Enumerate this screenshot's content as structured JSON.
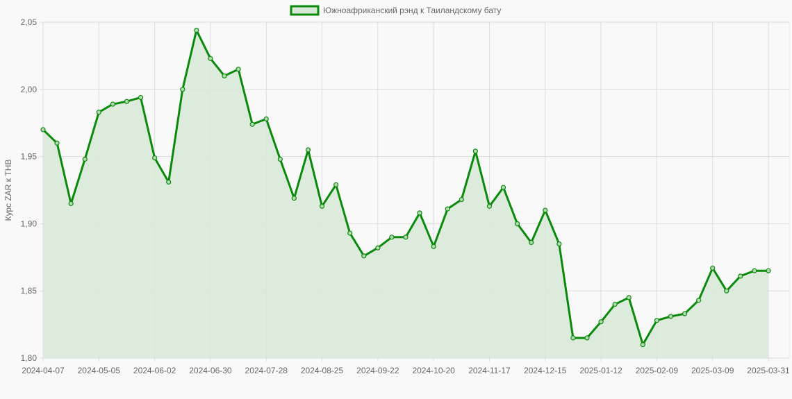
{
  "chart_data": {
    "type": "line",
    "legend": {
      "label": "Южноафриканский рэнд к Таиландскому бату",
      "position": "top"
    },
    "ylabel": "Курс ZAR к THB",
    "xlabel": "",
    "ylim": [
      1.8,
      2.05
    ],
    "yticks": [
      "1,80",
      "1,85",
      "1,90",
      "1,95",
      "2,00",
      "2,05"
    ],
    "grid": true,
    "colors": {
      "line": "#0a8a0a",
      "fill": "#d8e9d8"
    },
    "x": [
      "2024-04-07",
      "2024-04-14",
      "2024-04-21",
      "2024-04-28",
      "2024-05-05",
      "2024-05-12",
      "2024-05-19",
      "2024-05-26",
      "2024-06-02",
      "2024-06-09",
      "2024-06-16",
      "2024-06-23",
      "2024-06-30",
      "2024-07-07",
      "2024-07-14",
      "2024-07-21",
      "2024-07-28",
      "2024-08-04",
      "2024-08-11",
      "2024-08-18",
      "2024-08-25",
      "2024-09-01",
      "2024-09-08",
      "2024-09-15",
      "2024-09-22",
      "2024-09-29",
      "2024-10-06",
      "2024-10-13",
      "2024-10-20",
      "2024-10-27",
      "2024-11-03",
      "2024-11-10",
      "2024-11-17",
      "2024-11-24",
      "2024-12-01",
      "2024-12-08",
      "2024-12-15",
      "2024-12-22",
      "2024-12-29",
      "2025-01-05",
      "2025-01-12",
      "2025-01-19",
      "2025-01-26",
      "2025-02-02",
      "2025-02-09",
      "2025-02-16",
      "2025-02-23",
      "2025-03-02",
      "2025-03-09",
      "2025-03-16",
      "2025-03-23",
      "2025-03-30",
      "2025-03-31"
    ],
    "xticks": [
      "2024-04-07",
      "2024-05-05",
      "2024-06-02",
      "2024-06-30",
      "2024-07-28",
      "2024-08-25",
      "2024-09-22",
      "2024-10-20",
      "2024-11-17",
      "2024-12-15",
      "2025-01-12",
      "2025-02-09",
      "2025-03-09",
      "2025-03-31"
    ],
    "series": [
      {
        "values": [
          1.97,
          1.96,
          1.915,
          1.948,
          1.983,
          1.989,
          1.991,
          1.994,
          1.949,
          1.931,
          2.0,
          2.044,
          2.023,
          2.01,
          2.015,
          1.974,
          1.978,
          1.948,
          1.919,
          1.955,
          1.913,
          1.929,
          1.893,
          1.876,
          1.882,
          1.89,
          1.89,
          1.908,
          1.883,
          1.911,
          1.918,
          1.954,
          1.913,
          1.927,
          1.9,
          1.886,
          1.91,
          1.885,
          1.815,
          1.815,
          1.827,
          1.84,
          1.845,
          1.81,
          1.828,
          1.831,
          1.833,
          1.843,
          1.867,
          1.85,
          1.861,
          1.865,
          1.865
        ]
      }
    ]
  }
}
